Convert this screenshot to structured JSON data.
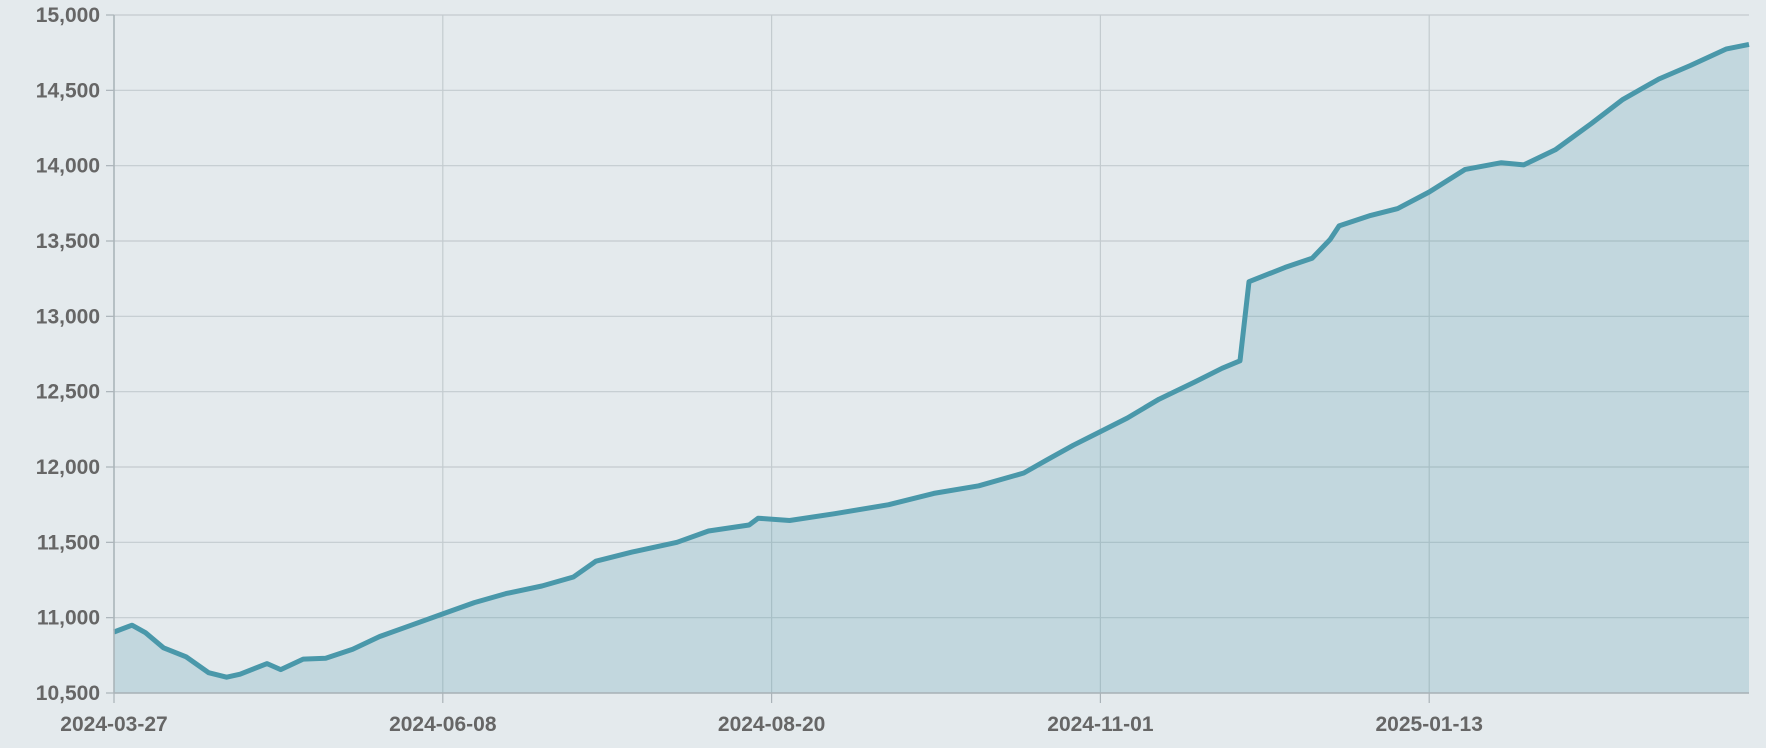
{
  "chart_data": {
    "type": "area",
    "x": [
      "2024-03-27",
      "2024-03-31",
      "2024-04-03",
      "2024-04-07",
      "2024-04-12",
      "2024-04-17",
      "2024-04-21",
      "2024-04-24",
      "2024-04-30",
      "2024-05-03",
      "2024-05-08",
      "2024-05-13",
      "2024-05-19",
      "2024-05-25",
      "2024-06-01",
      "2024-06-08",
      "2024-06-15",
      "2024-06-22",
      "2024-06-30",
      "2024-07-07",
      "2024-07-12",
      "2024-07-20",
      "2024-07-30",
      "2024-08-06",
      "2024-08-15",
      "2024-08-17",
      "2024-08-24",
      "2024-09-03",
      "2024-09-15",
      "2024-09-25",
      "2024-10-05",
      "2024-10-15",
      "2024-10-20",
      "2024-10-26",
      "2024-11-01",
      "2024-11-07",
      "2024-11-14",
      "2024-11-22",
      "2024-11-28",
      "2024-12-02",
      "2024-12-04",
      "2024-12-12",
      "2024-12-18",
      "2024-12-22",
      "2024-12-24",
      "2024-12-31",
      "2025-01-06",
      "2025-01-13",
      "2025-01-21",
      "2025-01-29",
      "2025-02-03",
      "2025-02-10",
      "2025-02-18",
      "2025-02-25",
      "2025-03-05",
      "2025-03-12",
      "2025-03-20",
      "2025-03-25"
    ],
    "values": [
      10905,
      10950,
      10900,
      10800,
      10740,
      10635,
      10605,
      10625,
      10695,
      10655,
      10725,
      10730,
      10790,
      10875,
      10950,
      11025,
      11100,
      11160,
      11210,
      11270,
      11375,
      11435,
      11500,
      11575,
      11615,
      11660,
      11645,
      11690,
      11750,
      11825,
      11875,
      11960,
      12045,
      12145,
      12235,
      12325,
      12450,
      12565,
      12655,
      12705,
      13230,
      13325,
      13385,
      13510,
      13600,
      13670,
      13715,
      13825,
      13975,
      14020,
      14005,
      14105,
      14280,
      14440,
      14575,
      14665,
      14775,
      14805
    ],
    "color": "#4a98aa",
    "xlim": [
      "2024-03-27",
      "2025-03-25"
    ],
    "xticks": [
      "2024-03-27",
      "2024-06-08",
      "2024-08-20",
      "2024-11-01",
      "2025-01-13"
    ],
    "ylim": [
      10500,
      15000
    ],
    "yticks": [
      {
        "value": 10500,
        "label": "10,500"
      },
      {
        "value": 11000,
        "label": "11,000"
      },
      {
        "value": 11500,
        "label": "11,500"
      },
      {
        "value": 12000,
        "label": "12,000"
      },
      {
        "value": 12500,
        "label": "12,500"
      },
      {
        "value": 13000,
        "label": "13,000"
      },
      {
        "value": 13500,
        "label": "13,500"
      },
      {
        "value": 14000,
        "label": "14,000"
      },
      {
        "value": 14500,
        "label": "14,500"
      },
      {
        "value": 15000,
        "label": "15,000"
      }
    ],
    "grid": true
  }
}
